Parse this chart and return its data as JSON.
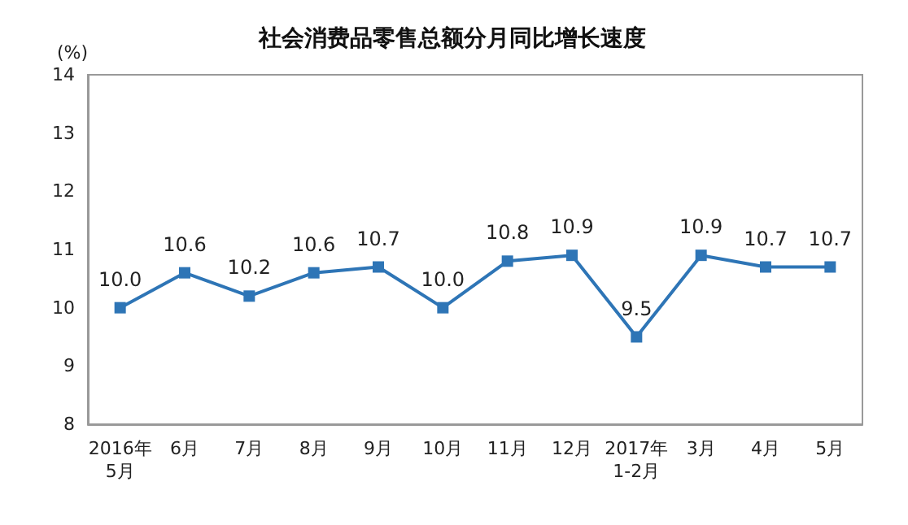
{
  "chart_data": {
    "type": "line",
    "title": "社会消费品零售总额分月同比增长速度",
    "ylabel": "(%)",
    "categories": [
      "2016年\n5月",
      "6月",
      "7月",
      "8月",
      "9月",
      "10月",
      "11月",
      "12月",
      "2017年\n1-2月",
      "3月",
      "4月",
      "5月"
    ],
    "series": [
      {
        "color": "#2e75b6",
        "values": [
          10.0,
          10.6,
          10.2,
          10.6,
          10.7,
          10.0,
          10.8,
          10.9,
          9.5,
          10.9,
          10.7,
          10.7
        ],
        "value_labels": [
          "10.0",
          "10.6",
          "10.2",
          "10.6",
          "10.7",
          "10.0",
          "10.8",
          "10.9",
          "9.5",
          "10.9",
          "10.7",
          "10.7"
        ]
      }
    ],
    "ylim": [
      8,
      14
    ],
    "yticks": [
      8,
      9,
      10,
      11,
      12,
      13,
      14
    ],
    "grid": false,
    "marker": "square",
    "line_style": "solid"
  }
}
